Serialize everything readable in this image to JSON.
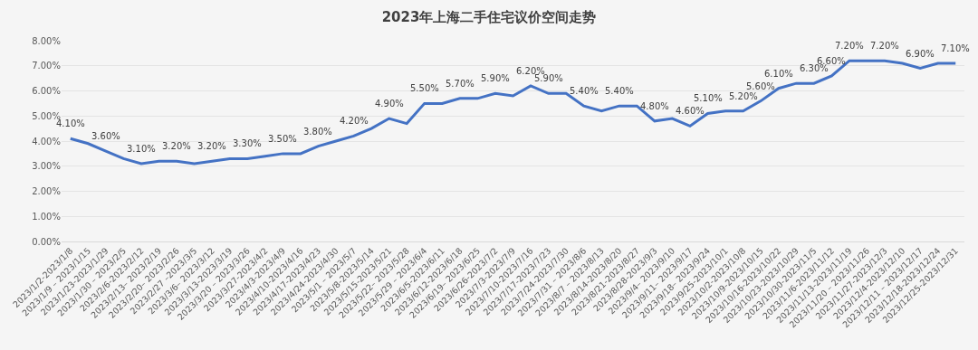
{
  "chart_data": {
    "type": "line",
    "title": "2023年上海二手住宅议价空间走势",
    "categories": [
      "2023/1/2-2023/1/8",
      "2023/1/9 – 2023/1/15",
      "2023/1/23-2023/1/29",
      "2023/1/30 – 2023/2/5",
      "2023/2/6-2023/2/12",
      "2023/2/13– 2023/2/19",
      "2023/2/20– 2023/2/26",
      "2023/2/27 –2023/3/5",
      "2023/3/6– 2023/3/12",
      "2023/3/13-2023/3/19",
      "2023/3/20 – 2023/3/26",
      "2023/3/27-2023/4/2",
      "2023/4/3-2023/4/9",
      "2023/4/10-2023/4/16",
      "2023/4/17-2023/4/23",
      "2023/4/24-2023/4/30",
      "2023/5/1 – 2023/5/7",
      "2023/5/8-2023/5/14",
      "2023/5/15-2023/5/21",
      "2023/5/22– 2023/5/28",
      "2023/5/29 – 2023/6/4",
      "2023/6/5-2023/6/11",
      "2023/6/12-2023/6/18",
      "2023/6/19– 2023/6/25",
      "2023/6/26-2023/7/2",
      "2023/7/3-2023/7/9",
      "2023/7/10-2023/7/16",
      "2023/7/17-2023/7/23",
      "2023/7/24-2023/7/30",
      "2023/7/31 – 2023/8/6",
      "2023/8/7 – 2023/8/13",
      "2023/8/14-2023/8/20",
      "2023/8/21-2023/8/27",
      "2023/8/28-2023/9/3",
      "2023/9/4– 2023/9/10",
      "2023/9/11– 2023/9/17",
      "2023/9/18– 2023/9/24",
      "2023/9/25-2023/10/1",
      "2023/10/2-2023/10/8",
      "2023/10/9-2023/10/15",
      "2023/10/16-2023/10/22",
      "2023/10/23-2023/10/29",
      "2023/10/30-2023/11/5",
      "2023/11/6-2023/11/12",
      "2023/11/13-2023/11/19",
      "2023/11/20 – 2023/11/26",
      "2023/11/27-2023/12/3",
      "2023/12/4-2023/12/10",
      "2023/12/11 – 2023/12/17",
      "2023/12/18-2023/12/24",
      "2023/12/25-2023/12/31"
    ],
    "series": [
      {
        "color": "#4472c4",
        "values": [
          4.1,
          3.9,
          3.6,
          3.3,
          3.1,
          3.2,
          3.2,
          3.1,
          3.2,
          3.3,
          3.3,
          3.4,
          3.5,
          3.5,
          3.8,
          4.0,
          4.2,
          4.5,
          4.9,
          4.7,
          5.5,
          5.5,
          5.7,
          5.7,
          5.9,
          5.8,
          6.2,
          5.9,
          5.9,
          5.4,
          5.2,
          5.4,
          5.4,
          4.8,
          4.9,
          4.6,
          5.1,
          5.2,
          5.2,
          5.6,
          6.1,
          6.3,
          6.3,
          6.6,
          7.2,
          7.2,
          7.2,
          7.1,
          6.9,
          7.1,
          7.1
        ],
        "value_labels": [
          "4.10%",
          null,
          "3.60%",
          null,
          "3.10%",
          null,
          "3.20%",
          null,
          "3.20%",
          null,
          "3.30%",
          null,
          "3.50%",
          null,
          "3.80%",
          null,
          "4.20%",
          null,
          "4.90%",
          null,
          "5.50%",
          null,
          "5.70%",
          null,
          "5.90%",
          null,
          "6.20%",
          "5.90%",
          null,
          "5.40%",
          null,
          "5.40%",
          null,
          "4.80%",
          null,
          "4.60%",
          "5.10%",
          null,
          "5.20%",
          "5.60%",
          "6.10%",
          null,
          "6.30%",
          "6.60%",
          "7.20%",
          null,
          "7.20%",
          null,
          "6.90%",
          null,
          "7.10%"
        ]
      }
    ],
    "ylim": [
      0,
      8
    ],
    "yticks": [
      {
        "value": 0,
        "label": "0.00%"
      },
      {
        "value": 1,
        "label": "1.00%"
      },
      {
        "value": 2,
        "label": "2.00%"
      },
      {
        "value": 3,
        "label": "3.00%"
      },
      {
        "value": 4,
        "label": "4.00%"
      },
      {
        "value": 5,
        "label": "5.00%"
      },
      {
        "value": 6,
        "label": "6.00%"
      },
      {
        "value": 7,
        "label": "7.00%"
      },
      {
        "value": 8,
        "label": "8.00%"
      }
    ],
    "grid": "y",
    "marker": "none",
    "line_style": "solid"
  }
}
